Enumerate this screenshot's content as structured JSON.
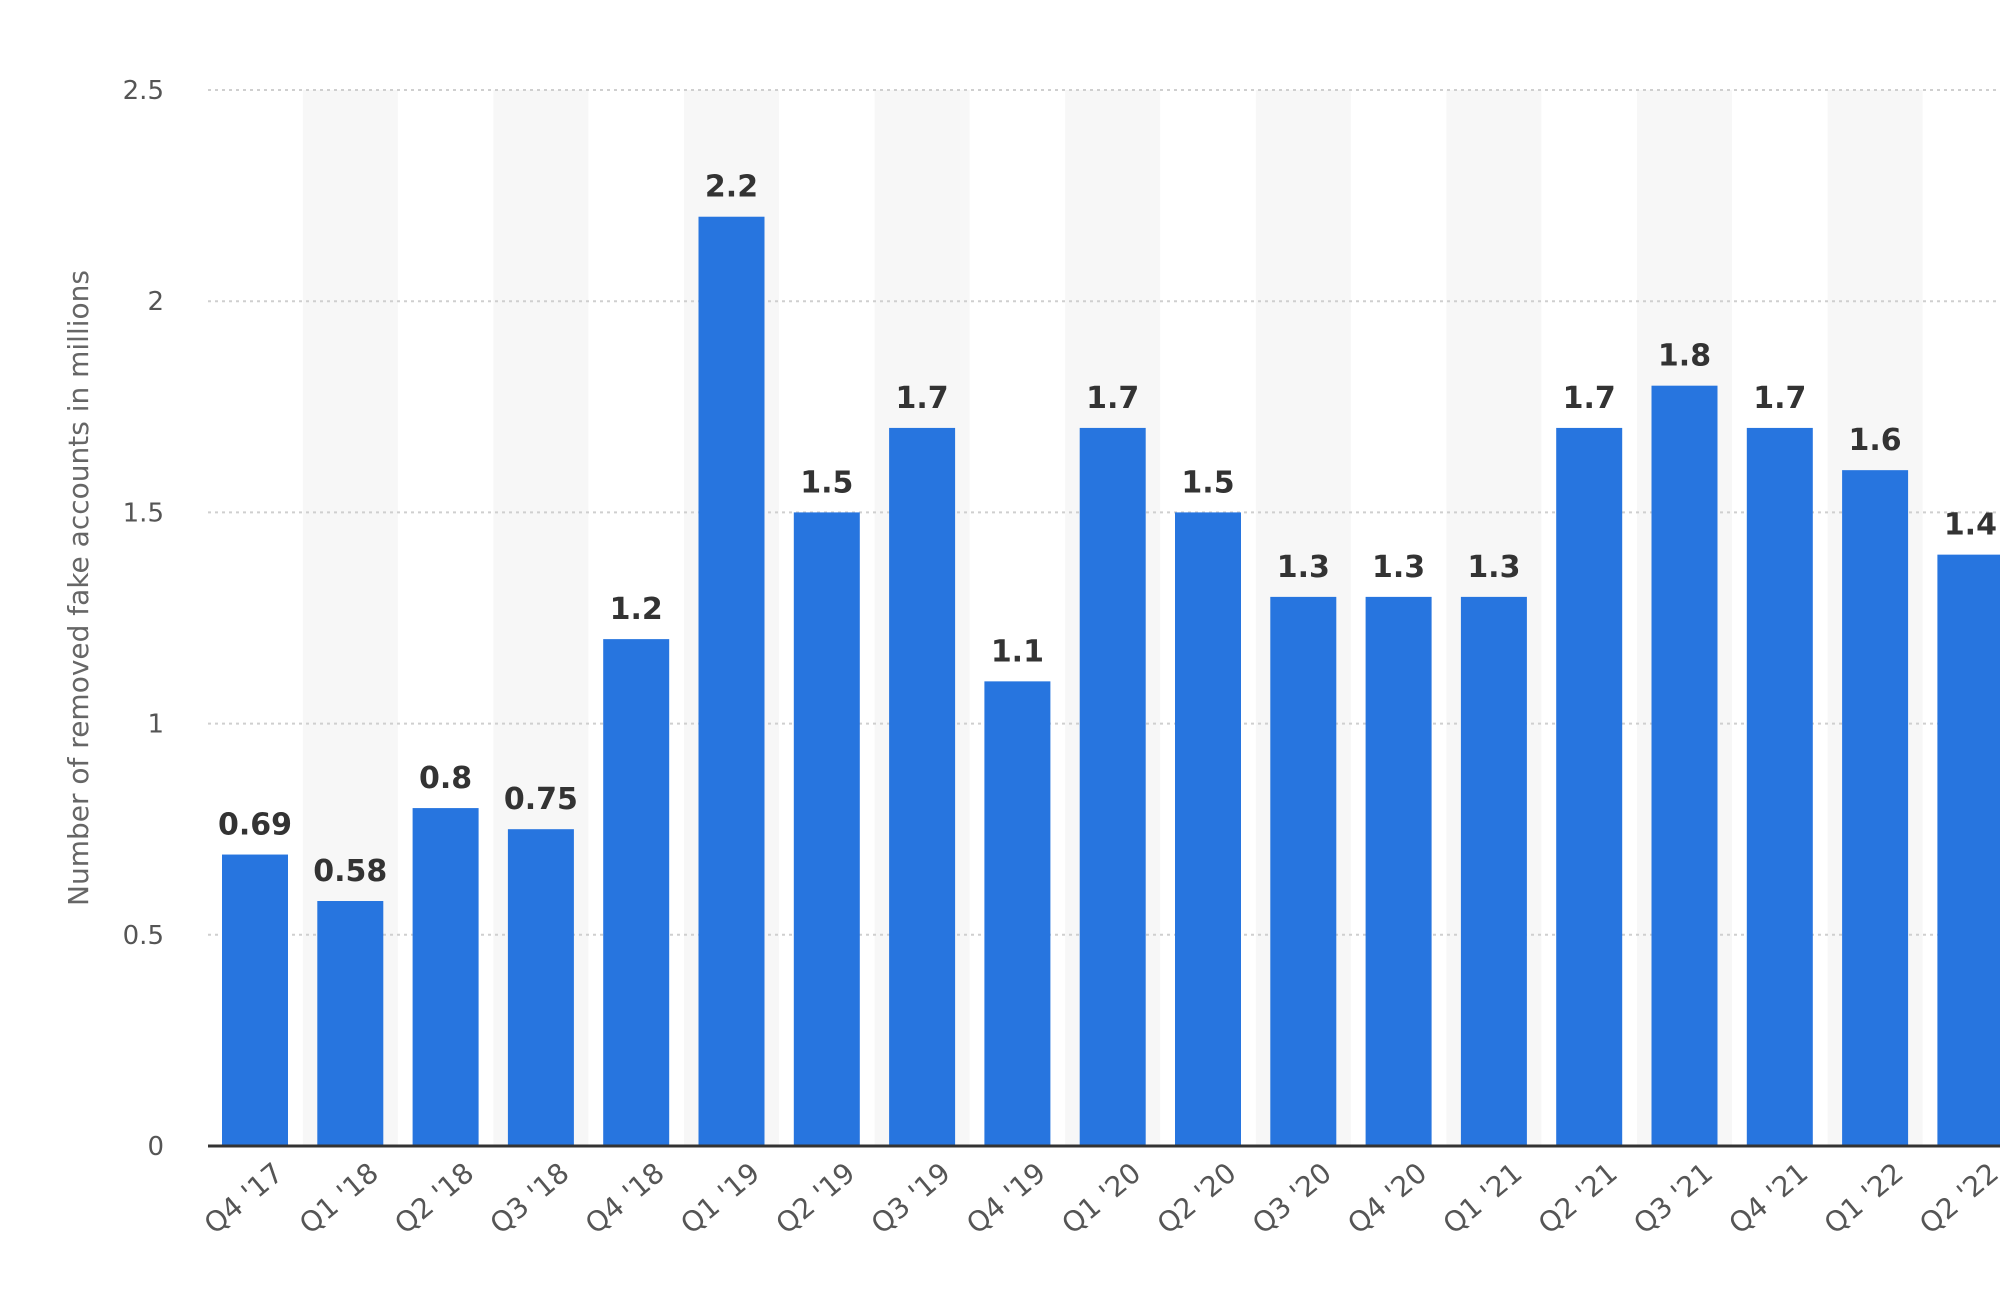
{
  "chart_data": {
    "type": "bar",
    "categories": [
      "Q4 '17",
      "Q1 '18",
      "Q2 '18",
      "Q3 '18",
      "Q4 '18",
      "Q1 '19",
      "Q2 '19",
      "Q3 '19",
      "Q4 '19",
      "Q1 '20",
      "Q2 '20",
      "Q3 '20",
      "Q4 '20",
      "Q1 '21",
      "Q2 '21",
      "Q3 '21",
      "Q4 '21",
      "Q1 '22",
      "Q2 '22"
    ],
    "values": [
      0.69,
      0.58,
      0.8,
      0.75,
      1.2,
      2.2,
      1.5,
      1.7,
      1.1,
      1.7,
      1.5,
      1.3,
      1.3,
      1.3,
      1.7,
      1.8,
      1.7,
      1.6,
      1.4
    ],
    "labels": [
      "0.69",
      "0.58",
      "0.8",
      "0.75",
      "1.2",
      "2.2",
      "1.5",
      "1.7",
      "1.1",
      "1.7",
      "1.5",
      "1.3",
      "1.3",
      "1.3",
      "1.7",
      "1.8",
      "1.7",
      "1.6",
      "1.4"
    ],
    "ylabel": "Number of removed fake accounts in millions",
    "ylim": [
      0,
      2.5
    ],
    "yticks": [
      0,
      0.5,
      1,
      1.5,
      2,
      2.5
    ],
    "ytick_labels": [
      "0",
      "0.5",
      "1",
      "1.5",
      "2",
      "2.5"
    ],
    "grid": true,
    "bar_color": "#2775df"
  }
}
